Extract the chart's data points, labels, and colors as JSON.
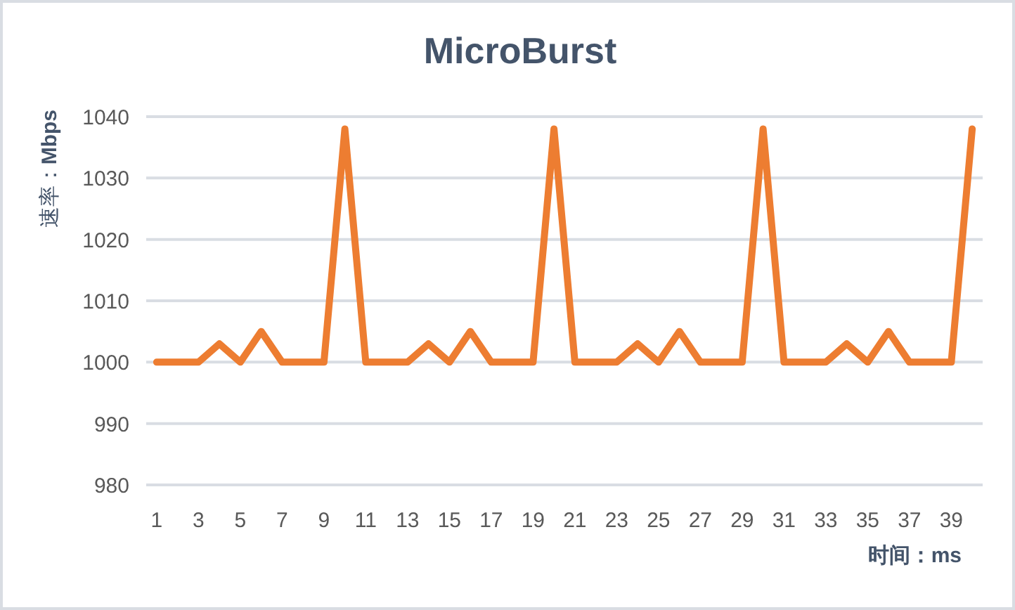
{
  "chart_data": {
    "type": "line",
    "title": "MicroBurst",
    "xlabel": "时间：ms",
    "ylabel": "速率：**Mbps**",
    "x": [
      1,
      2,
      3,
      4,
      5,
      6,
      7,
      8,
      9,
      10,
      11,
      12,
      13,
      14,
      15,
      16,
      17,
      18,
      19,
      20,
      21,
      22,
      23,
      24,
      25,
      26,
      27,
      28,
      29,
      30,
      31,
      32,
      33,
      34,
      35,
      36,
      37,
      38,
      39,
      40
    ],
    "values": [
      1000,
      1000,
      1000,
      1003,
      1000,
      1005,
      1000,
      1000,
      1000,
      1038,
      1000,
      1000,
      1000,
      1003,
      1000,
      1005,
      1000,
      1000,
      1000,
      1038,
      1000,
      1000,
      1000,
      1003,
      1000,
      1005,
      1000,
      1000,
      1000,
      1038,
      1000,
      1000,
      1000,
      1003,
      1000,
      1005,
      1000,
      1000,
      1000,
      1038
    ],
    "color": "#ed7d31",
    "xlim": [
      0.5,
      40.5
    ],
    "xticks": [
      1,
      3,
      5,
      7,
      9,
      11,
      13,
      15,
      17,
      19,
      21,
      23,
      25,
      27,
      29,
      31,
      33,
      35,
      37,
      39
    ],
    "ylim": [
      980,
      1040
    ],
    "yticks": [
      980,
      990,
      1000,
      1010,
      1020,
      1030,
      1040
    ],
    "grid": "y"
  }
}
